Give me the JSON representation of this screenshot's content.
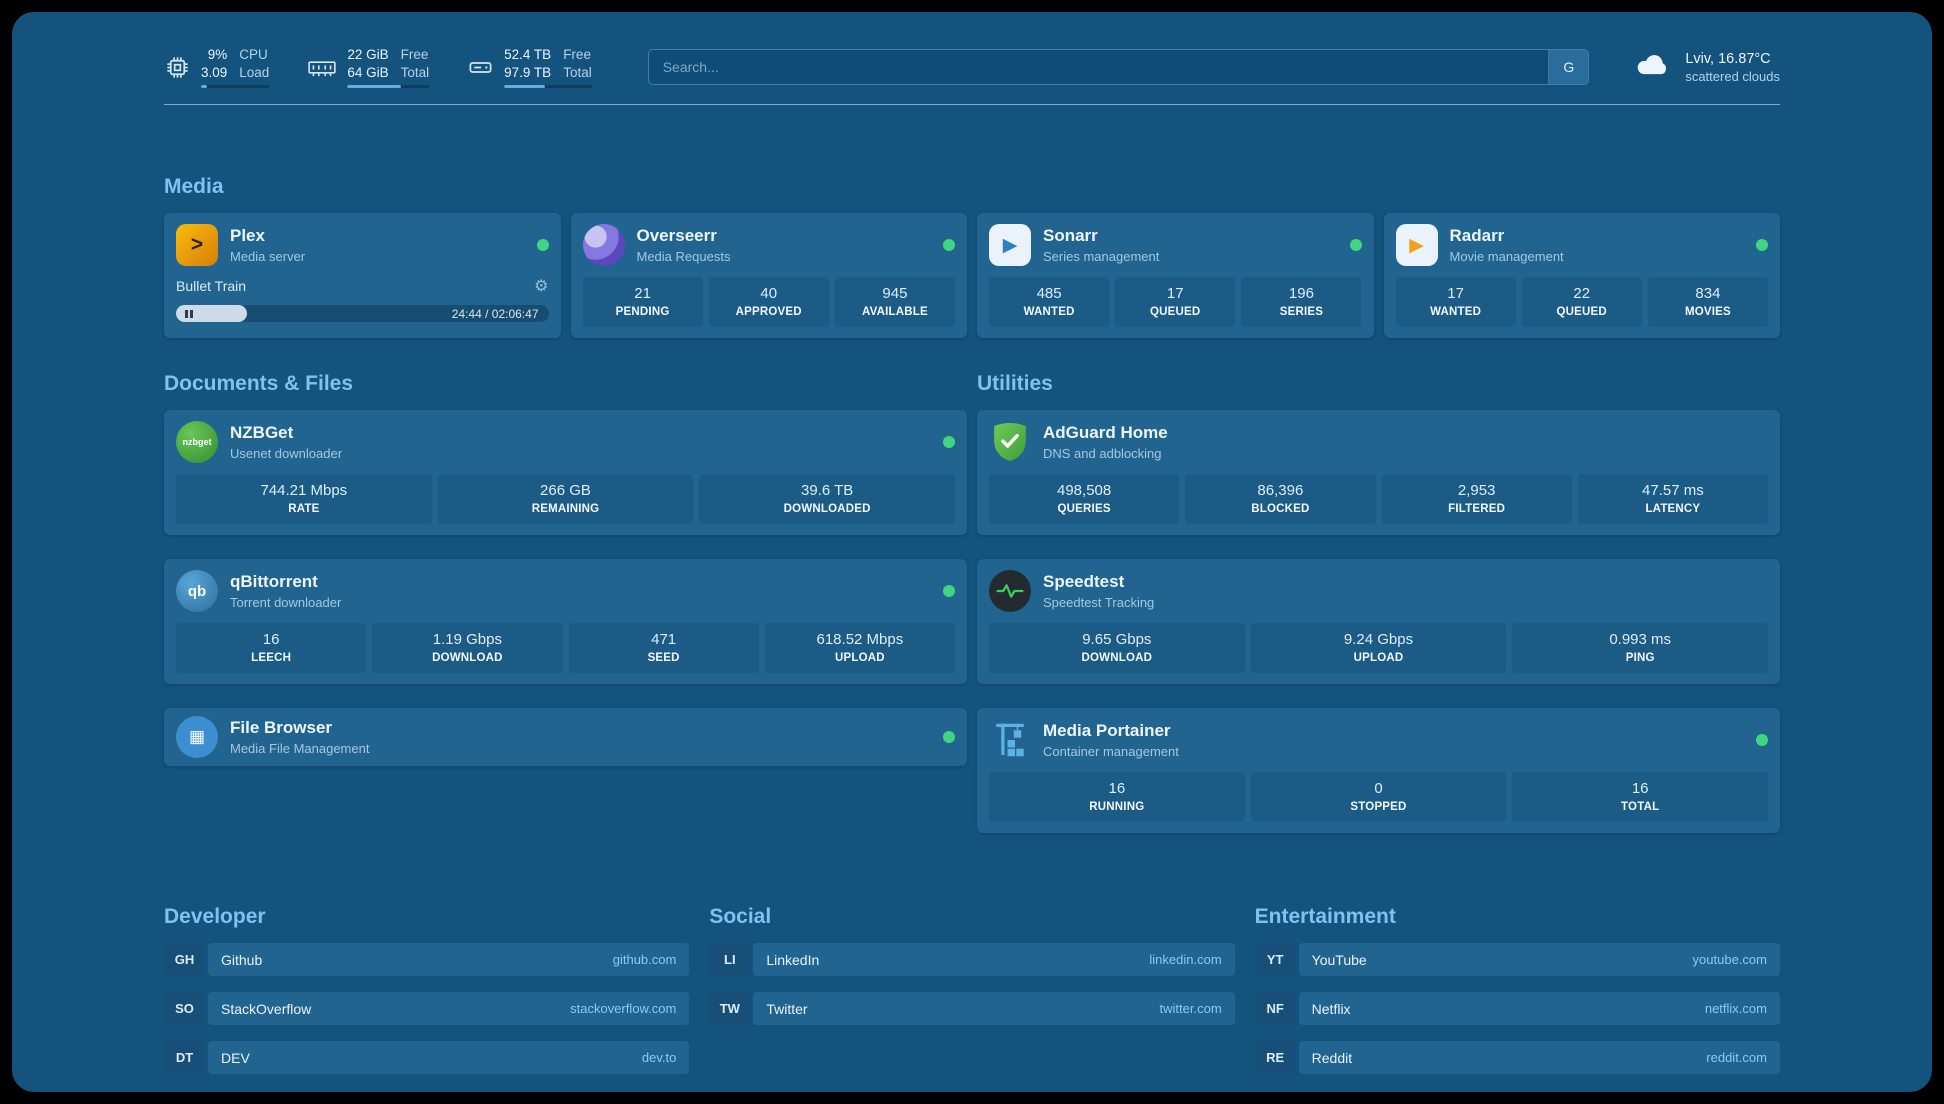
{
  "colors": {
    "background": "#14537e",
    "card": "#20648f",
    "heading": "#7ec3ef",
    "status_online": "#3fd67f",
    "link": "#88ccf4"
  },
  "topbar": {
    "resources": [
      {
        "icon": "cpu-icon",
        "values": [
          "9%",
          "3.09"
        ],
        "labels": [
          "CPU",
          "Load"
        ],
        "progress_pct": 9
      },
      {
        "icon": "memory-icon",
        "values": [
          "22 GiB",
          "64 GiB"
        ],
        "labels": [
          "Free",
          "Total"
        ],
        "progress_pct": 66
      },
      {
        "icon": "disk-icon",
        "values": [
          "52.4 TB",
          "97.9 TB"
        ],
        "labels": [
          "Free",
          "Total"
        ],
        "progress_pct": 47
      }
    ],
    "search": {
      "placeholder": "Search...",
      "engine_button": "G"
    },
    "weather": {
      "location": "Lviv, 16.87°C",
      "condition": "scattered clouds"
    }
  },
  "media": {
    "heading": "Media",
    "plex": {
      "title": "Plex",
      "subtitle": "Media server",
      "status": "online",
      "now_playing": "Bullet Train",
      "elapsed": "24:44 / 02:06:47",
      "progress_pct": 19
    },
    "overseerr": {
      "title": "Overseerr",
      "subtitle": "Media Requests",
      "status": "online",
      "stats": [
        {
          "value": "21",
          "label": "PENDING"
        },
        {
          "value": "40",
          "label": "APPROVED"
        },
        {
          "value": "945",
          "label": "AVAILABLE"
        }
      ]
    },
    "sonarr": {
      "title": "Sonarr",
      "subtitle": "Series management",
      "status": "online",
      "stats": [
        {
          "value": "485",
          "label": "WANTED"
        },
        {
          "value": "17",
          "label": "QUEUED"
        },
        {
          "value": "196",
          "label": "SERIES"
        }
      ]
    },
    "radarr": {
      "title": "Radarr",
      "subtitle": "Movie management",
      "status": "online",
      "stats": [
        {
          "value": "17",
          "label": "WANTED"
        },
        {
          "value": "22",
          "label": "QUEUED"
        },
        {
          "value": "834",
          "label": "MOVIES"
        }
      ]
    }
  },
  "documents": {
    "heading": "Documents & Files",
    "nzbget": {
      "title": "NZBGet",
      "subtitle": "Usenet downloader",
      "icon_text": "nzbget",
      "status": "online",
      "stats": [
        {
          "value": "744.21 Mbps",
          "label": "RATE"
        },
        {
          "value": "266 GB",
          "label": "REMAINING"
        },
        {
          "value": "39.6 TB",
          "label": "DOWNLOADED"
        }
      ]
    },
    "qbittorrent": {
      "title": "qBittorrent",
      "subtitle": "Torrent downloader",
      "icon_text": "qb",
      "status": "online",
      "stats": [
        {
          "value": "16",
          "label": "LEECH"
        },
        {
          "value": "1.19 Gbps",
          "label": "DOWNLOAD"
        },
        {
          "value": "471",
          "label": "SEED"
        },
        {
          "value": "618.52 Mbps",
          "label": "UPLOAD"
        }
      ]
    },
    "filebrowser": {
      "title": "File Browser",
      "subtitle": "Media File Management",
      "status": "online"
    }
  },
  "utilities": {
    "heading": "Utilities",
    "adguard": {
      "title": "AdGuard Home",
      "subtitle": "DNS and adblocking",
      "stats": [
        {
          "value": "498,508",
          "label": "QUERIES"
        },
        {
          "value": "86,396",
          "label": "BLOCKED"
        },
        {
          "value": "2,953",
          "label": "FILTERED"
        },
        {
          "value": "47.57 ms",
          "label": "LATENCY"
        }
      ]
    },
    "speedtest": {
      "title": "Speedtest",
      "subtitle": "Speedtest Tracking",
      "stats": [
        {
          "value": "9.65 Gbps",
          "label": "DOWNLOAD"
        },
        {
          "value": "9.24 Gbps",
          "label": "UPLOAD"
        },
        {
          "value": "0.993 ms",
          "label": "PING"
        }
      ]
    },
    "portainer": {
      "title": "Media Portainer",
      "subtitle": "Container management",
      "status": "online",
      "stats": [
        {
          "value": "16",
          "label": "RUNNING"
        },
        {
          "value": "0",
          "label": "STOPPED"
        },
        {
          "value": "16",
          "label": "TOTAL"
        }
      ]
    }
  },
  "bookmarks": [
    {
      "heading": "Developer",
      "items": [
        {
          "abbr": "GH",
          "name": "Github",
          "domain": "github.com"
        },
        {
          "abbr": "SO",
          "name": "StackOverflow",
          "domain": "stackoverflow.com"
        },
        {
          "abbr": "DT",
          "name": "DEV",
          "domain": "dev.to"
        }
      ]
    },
    {
      "heading": "Social",
      "items": [
        {
          "abbr": "LI",
          "name": "LinkedIn",
          "domain": "linkedin.com"
        },
        {
          "abbr": "TW",
          "name": "Twitter",
          "domain": "twitter.com"
        }
      ]
    },
    {
      "heading": "Entertainment",
      "items": [
        {
          "abbr": "YT",
          "name": "YouTube",
          "domain": "youtube.com"
        },
        {
          "abbr": "NF",
          "name": "Netflix",
          "domain": "netflix.com"
        },
        {
          "abbr": "RE",
          "name": "Reddit",
          "domain": "reddit.com"
        }
      ]
    }
  ]
}
